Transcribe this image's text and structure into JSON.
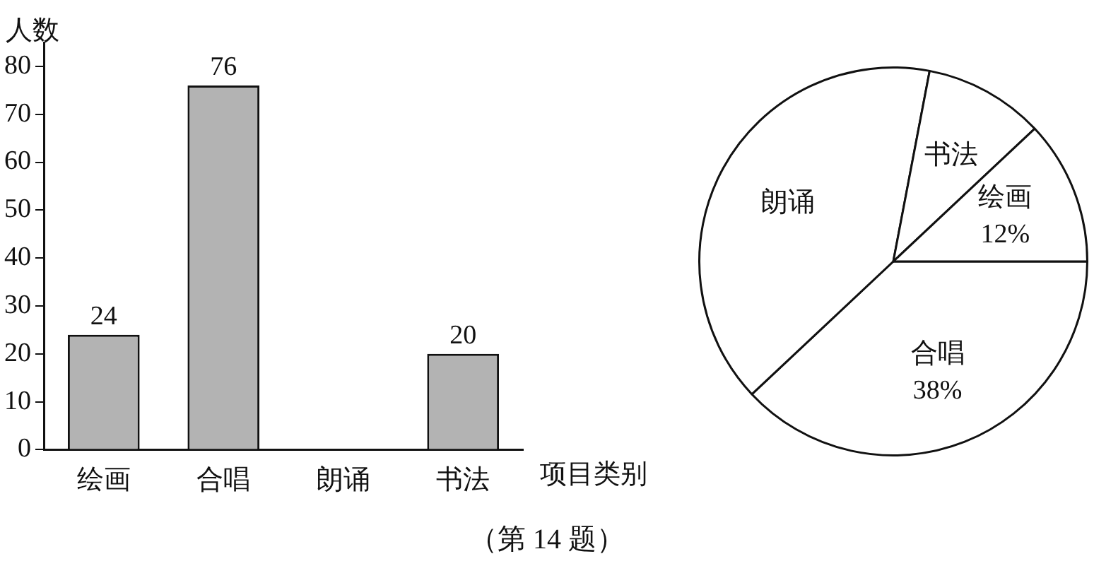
{
  "chart_data": [
    {
      "type": "bar",
      "categories": [
        "绘画",
        "合唱",
        "朗诵",
        "书法"
      ],
      "values": [
        24,
        76,
        null,
        20
      ],
      "color": "#b3b3b3",
      "ylim": [
        0,
        85
      ],
      "yticks": [
        0,
        10,
        20,
        30,
        40,
        50,
        60,
        70,
        80
      ],
      "xlabel": "项目类别",
      "ylabel": "人数",
      "data_labels": true,
      "grid": false,
      "legend": false,
      "annotations": [
        "（第 14 题）"
      ]
    },
    {
      "type": "pie",
      "categories": [
        "合唱",
        "朗诵",
        "书法",
        "绘画"
      ],
      "values": [
        38,
        40,
        10,
        12
      ],
      "colors": [
        "#ffffff",
        "#ffffff",
        "#ffffff",
        "#ffffff"
      ],
      "value_labels": [
        "38%",
        null,
        null,
        "12%"
      ],
      "legend": false
    }
  ]
}
